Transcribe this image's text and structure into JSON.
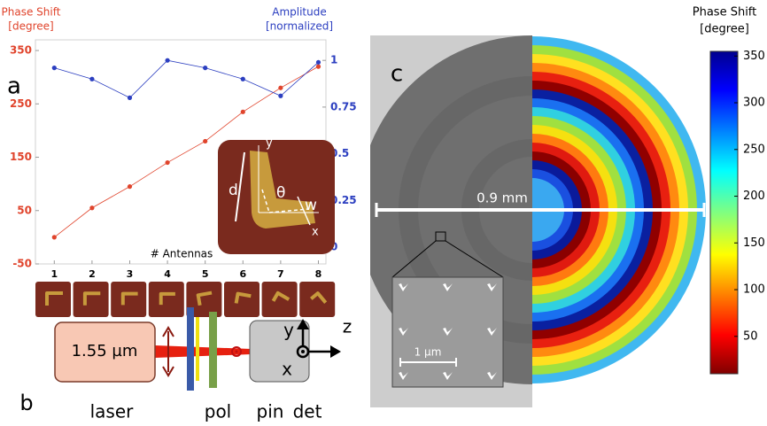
{
  "chart_data": {
    "type": "line",
    "ylabel": [
      "Phase Shift",
      "[degree]"
    ],
    "y2label": [
      "Amplitude",
      "[normalized]"
    ],
    "xlabel": "# Antennas",
    "x": [
      1,
      2,
      3,
      4,
      5,
      6,
      7,
      8
    ],
    "xlim": [
      0.5,
      8.2
    ],
    "xticks": [
      1,
      2,
      3,
      4,
      5,
      6,
      7,
      8
    ],
    "ylim": [
      -50,
      370
    ],
    "yticks": [
      -50,
      50,
      150,
      250,
      350
    ],
    "y2lim": [
      -0.09,
      1.11
    ],
    "y2ticks": [
      0,
      0.25,
      0.5,
      0.75,
      1
    ],
    "series": [
      {
        "color": "#e0442c",
        "values": [
          0,
          55,
          95,
          140,
          180,
          235,
          280,
          320
        ]
      },
      {
        "color": "#2c3fc0",
        "axis": "y2",
        "values": [
          0.96,
          0.9,
          0.8,
          1.0,
          0.96,
          0.9,
          0.81,
          0.99
        ]
      }
    ]
  },
  "labels": {
    "a": "a",
    "b": "b",
    "c": "c"
  },
  "inset": {
    "d": "d",
    "y": "y",
    "theta": "θ",
    "w": "w",
    "x": "x"
  },
  "setup": {
    "source": "1.55 µm",
    "captions": [
      "laser",
      "pol",
      "pin",
      "det"
    ],
    "axes": [
      "y",
      "z",
      "x"
    ]
  },
  "image": {
    "scale_large": "0.9 mm",
    "scale_small": "1 µm"
  },
  "colorbar": {
    "title": [
      "Phase Shift",
      "[degree]"
    ],
    "lim": [
      10,
      355
    ],
    "ticks": [
      50,
      100,
      150,
      200,
      250,
      300,
      350
    ]
  }
}
